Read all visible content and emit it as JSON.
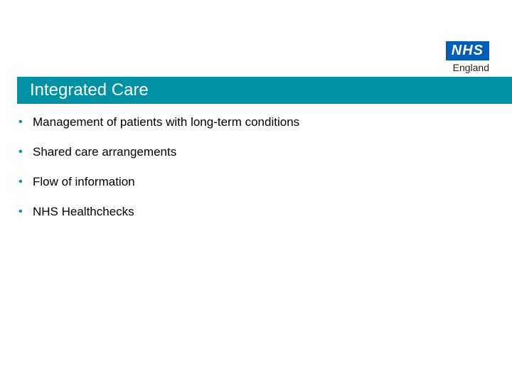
{
  "logo": {
    "main": "NHS",
    "sub": "England",
    "box_bg": "#005eb8",
    "box_fg": "#ffffff",
    "sub_color": "#231f20"
  },
  "title_bar": {
    "text": "Integrated Care",
    "bg": "#0091a5",
    "fg": "#ffffff",
    "fontsize": 24
  },
  "bullets": {
    "color": "#0091a5",
    "text_color": "#000000",
    "fontsize": 17,
    "items": [
      {
        "text": "Management of patients with long-term conditions"
      },
      {
        "text": "Shared care arrangements"
      },
      {
        "text": "Flow of information"
      },
      {
        "text": "NHS Healthchecks"
      }
    ]
  },
  "background_color": "#ffffff"
}
